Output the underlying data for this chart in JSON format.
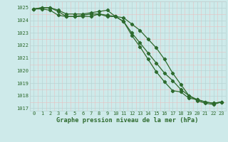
{
  "hours": [
    0,
    1,
    2,
    3,
    4,
    5,
    6,
    7,
    8,
    9,
    10,
    11,
    12,
    13,
    14,
    15,
    16,
    17,
    18,
    19,
    20,
    21,
    22,
    23
  ],
  "line1": [
    1024.9,
    1025.0,
    1025.0,
    1024.8,
    1024.5,
    1024.5,
    1024.5,
    1024.6,
    1024.7,
    1024.8,
    1024.3,
    1023.9,
    1023.0,
    1022.2,
    1021.4,
    1020.6,
    1019.8,
    1019.2,
    1018.5,
    1018.0,
    1017.6,
    1017.4,
    1017.3,
    1017.5
  ],
  "line2": [
    1024.9,
    1025.0,
    1025.0,
    1024.7,
    1024.3,
    1024.3,
    1024.4,
    1024.5,
    1024.5,
    1024.3,
    1024.3,
    1023.9,
    1022.8,
    1021.9,
    1020.9,
    1019.9,
    1019.1,
    1018.4,
    1018.3,
    1017.8,
    1017.7,
    1017.5,
    1017.4,
    1017.5
  ],
  "line3": [
    1024.9,
    1024.9,
    1024.8,
    1024.4,
    1024.3,
    1024.3,
    1024.3,
    1024.3,
    1024.5,
    1024.4,
    1024.3,
    1024.2,
    1023.7,
    1023.2,
    1022.5,
    1021.8,
    1020.9,
    1019.8,
    1018.9,
    1018.0,
    1017.7,
    1017.5,
    1017.4,
    1017.5
  ],
  "line_color": "#2d6a2d",
  "bg_color": "#ceeaea",
  "major_grid_color": "#b8d4d4",
  "minor_grid_color": "#e8c0c0",
  "title": "Graphe pression niveau de la mer (hPa)",
  "ylim_min": 1016.8,
  "ylim_max": 1025.5,
  "yticks": [
    1017,
    1018,
    1019,
    1020,
    1021,
    1022,
    1023,
    1024,
    1025
  ],
  "marker": "D",
  "marker_size": 2.2,
  "linewidth": 0.9,
  "tick_fontsize": 5.0,
  "title_fontsize": 6.2
}
